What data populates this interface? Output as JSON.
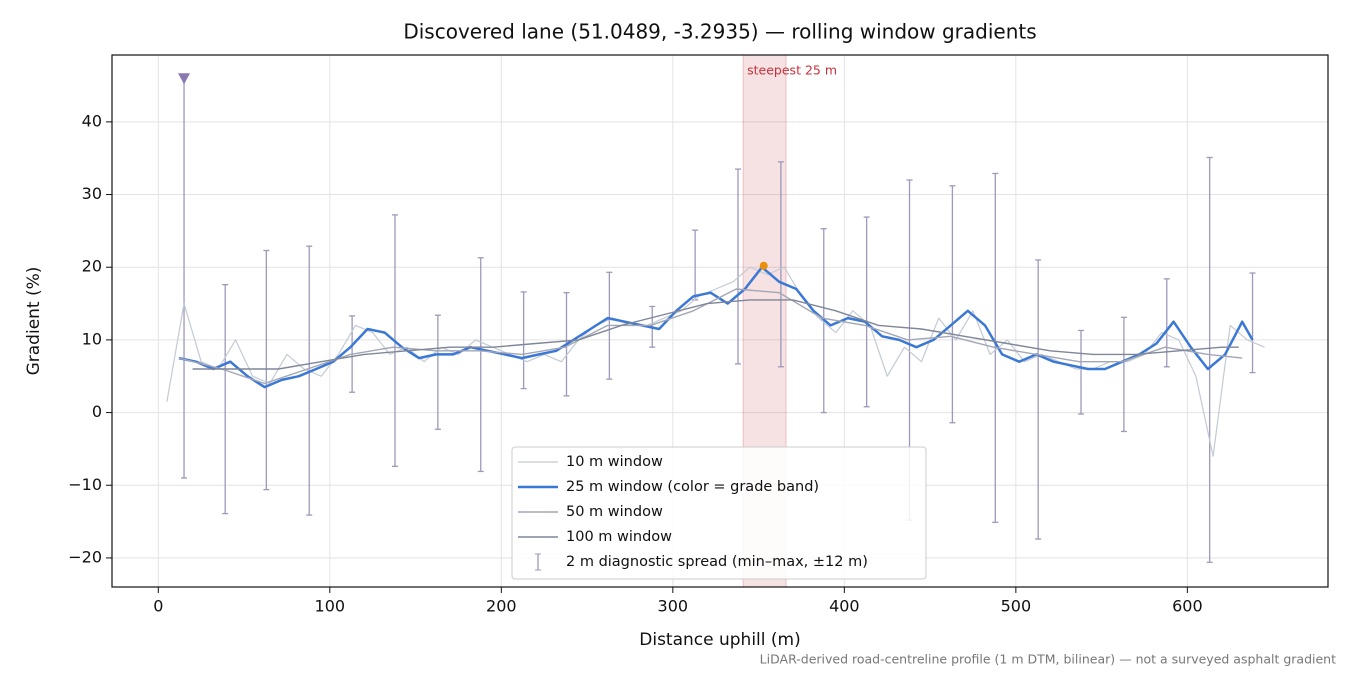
{
  "chart_data": {
    "type": "line",
    "title": "Discovered lane (51.0489, -3.2935) — rolling window gradients",
    "xlabel": "Distance uphill (m)",
    "ylabel": "Gradient (%)",
    "footnote": "LiDAR-derived road-centreline profile (1 m DTM, bilinear) — not a surveyed asphalt gradient",
    "xlim": [
      -27,
      682
    ],
    "ylim": [
      -24,
      49.2
    ],
    "xticks": [
      0,
      100,
      200,
      300,
      400,
      500,
      600
    ],
    "yticks": [
      {
        "value": -20,
        "label": "−20"
      },
      {
        "value": -10,
        "label": "−10"
      },
      0,
      10,
      20,
      30,
      40
    ],
    "grid": true,
    "legend": "lower center",
    "series": [
      {
        "name": "10 m window",
        "color": "#c3cad4",
        "width": 1.2,
        "x": [
          5,
          15,
          25,
          35,
          45,
          55,
          65,
          75,
          85,
          95,
          105,
          115,
          125,
          135,
          145,
          155,
          165,
          175,
          185,
          195,
          205,
          215,
          225,
          235,
          245,
          255,
          265,
          275,
          285,
          295,
          305,
          315,
          325,
          335,
          345,
          355,
          365,
          375,
          385,
          395,
          405,
          415,
          425,
          435,
          445,
          455,
          465,
          475,
          485,
          495,
          505,
          515,
          525,
          535,
          545,
          555,
          565,
          575,
          585,
          595,
          605,
          615,
          625,
          635,
          645
        ],
        "values": [
          1.5,
          15,
          7,
          6,
          10,
          5,
          4,
          8,
          6,
          5,
          8,
          12,
          11,
          8,
          9,
          7,
          9,
          8,
          10,
          9,
          8,
          7,
          8,
          7,
          10,
          12,
          13,
          12,
          12,
          13,
          14,
          16,
          17,
          18,
          20,
          19,
          20,
          16,
          13,
          11,
          14,
          12,
          5,
          9,
          7,
          13,
          10,
          14,
          8,
          10,
          7,
          8,
          7,
          6,
          6,
          7,
          7,
          8,
          11,
          10,
          5,
          -6,
          12,
          10,
          9
        ]
      },
      {
        "name": "25 m window (color = grade band)",
        "color": "#3a78d6",
        "width": 2.5,
        "x": [
          12,
          22,
          32,
          42,
          52,
          62,
          72,
          82,
          92,
          102,
          112,
          122,
          132,
          142,
          152,
          162,
          172,
          182,
          192,
          202,
          212,
          222,
          232,
          242,
          252,
          262,
          272,
          282,
          292,
          302,
          312,
          322,
          332,
          342,
          352,
          362,
          372,
          382,
          392,
          402,
          412,
          422,
          432,
          442,
          452,
          462,
          472,
          482,
          492,
          502,
          512,
          522,
          532,
          542,
          552,
          562,
          572,
          582,
          592,
          602,
          612,
          622,
          632,
          638
        ],
        "values": [
          7.5,
          7,
          6,
          7,
          5,
          3.5,
          4.5,
          5,
          6,
          7,
          9,
          11.5,
          11,
          9,
          7.5,
          8,
          8,
          9,
          8.5,
          8,
          7.5,
          8,
          8.5,
          10,
          11.5,
          13,
          12.5,
          12,
          11.5,
          14,
          16,
          16.5,
          15,
          17,
          20,
          18,
          17,
          14,
          12,
          13,
          12.5,
          10.5,
          10,
          9,
          10,
          12,
          14,
          12,
          8,
          7,
          8,
          7,
          6.5,
          6,
          6,
          7,
          8,
          9.5,
          12.5,
          9,
          6,
          8,
          12.5,
          10
        ]
      },
      {
        "name": "50 m window",
        "color": "#a2a6b6",
        "width": 1.4,
        "x": [
          12,
          37,
          62,
          87,
          112,
          137,
          162,
          187,
          212,
          237,
          262,
          287,
          312,
          337,
          362,
          387,
          412,
          437,
          462,
          487,
          512,
          537,
          562,
          587,
          612,
          632
        ],
        "values": [
          7.5,
          6,
          4,
          6,
          8,
          9,
          8.5,
          8.5,
          8,
          9,
          12,
          12,
          14,
          17,
          16.5,
          13,
          12,
          10,
          10.5,
          9,
          8,
          7,
          7,
          9,
          8,
          7.5
        ]
      },
      {
        "name": "100 m window",
        "color": "#7e8698",
        "width": 1.4,
        "x": [
          20,
          45,
          70,
          95,
          120,
          145,
          170,
          195,
          220,
          245,
          270,
          295,
          320,
          345,
          370,
          395,
          420,
          445,
          470,
          495,
          520,
          545,
          570,
          595,
          620,
          630
        ],
        "values": [
          6,
          6,
          6,
          7,
          8,
          8.5,
          9,
          9,
          9.5,
          10,
          12,
          13.5,
          15,
          15.5,
          15.5,
          14,
          12,
          11.5,
          10.5,
          9.5,
          8.5,
          8,
          8,
          8.5,
          9,
          9
        ]
      }
    ],
    "errorbars": {
      "name": "2 m diagnostic spread (min–max, ±12 m)",
      "color": "#9e98bb",
      "x": [
        15,
        39,
        63,
        88,
        113,
        138,
        163,
        188,
        213,
        238,
        263,
        288,
        313,
        338,
        363,
        388,
        413,
        438,
        463,
        488,
        513,
        538,
        563,
        588,
        613,
        638
      ],
      "low": [
        -9,
        -13.9,
        -10.6,
        -14.1,
        2.8,
        -7.4,
        -2.3,
        -8.1,
        3.3,
        2.3,
        4.6,
        9,
        15.5,
        6.7,
        6.3,
        0,
        0.8,
        -14.8,
        -1.4,
        -15.1,
        -17.4,
        -0.2,
        -2.6,
        6.3,
        -20.6,
        5.5
      ],
      "high": [
        46,
        17.6,
        22.3,
        22.9,
        13.3,
        27.2,
        13.4,
        21.3,
        16.6,
        16.5,
        19.3,
        14.6,
        25.1,
        33.5,
        34.5,
        25.3,
        26.9,
        32,
        31.2,
        32.9,
        21,
        11.3,
        13.1,
        18.4,
        35.1,
        19.2
      ]
    },
    "steepest": {
      "label": "steepest 25 m",
      "x0": 341,
      "x1": 366,
      "peak_x": 353,
      "peak_y": 20.2,
      "color": "#c8303a",
      "peak_color": "#e8900c"
    }
  }
}
